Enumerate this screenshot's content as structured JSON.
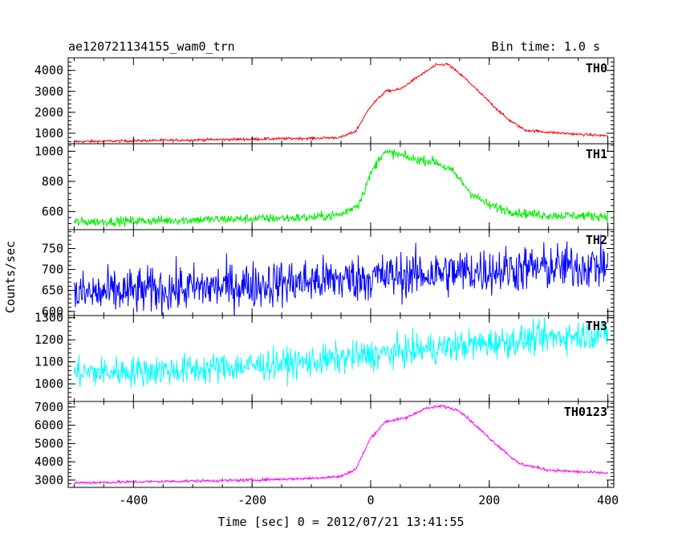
{
  "header": {
    "title": "ae120721134155_wam0_trn",
    "bin_time": "Bin time: 1.0 s"
  },
  "axes": {
    "xlabel": "Time [sec] 0 = 2012/07/21 13:41:55",
    "ylabel": "Counts/sec",
    "xlim": [
      -510,
      410
    ],
    "xticks": [
      -400,
      -200,
      0,
      200,
      400
    ]
  },
  "chart_data": [
    {
      "type": "line",
      "name": "TH0",
      "color": "#ff0000",
      "ylim": [
        500,
        4600
      ],
      "yticks": [
        1000,
        2000,
        3000,
        4000
      ],
      "noise": 45,
      "x": [
        -500,
        -400,
        -300,
        -200,
        -100,
        -50,
        -25,
        0,
        25,
        50,
        80,
        110,
        130,
        160,
        200,
        230,
        260,
        300,
        350,
        400
      ],
      "y": [
        600,
        640,
        680,
        720,
        760,
        800,
        1100,
        2300,
        3000,
        3100,
        3700,
        4250,
        4300,
        3600,
        2500,
        1700,
        1150,
        1050,
        950,
        880
      ]
    },
    {
      "type": "line",
      "name": "TH1",
      "color": "#00ee00",
      "ylim": [
        480,
        1050
      ],
      "yticks": [
        600,
        800,
        1000
      ],
      "noise": 22,
      "x": [
        -500,
        -300,
        -100,
        -50,
        -20,
        0,
        20,
        40,
        70,
        110,
        140,
        170,
        200,
        250,
        300,
        400
      ],
      "y": [
        530,
        545,
        560,
        580,
        650,
        850,
        990,
        985,
        950,
        930,
        860,
        720,
        640,
        590,
        575,
        570
      ]
    },
    {
      "type": "line",
      "name": "TH2",
      "color": "#0000ff",
      "ylim": [
        590,
        795
      ],
      "yticks": [
        600,
        650,
        700,
        750
      ],
      "noise": 40,
      "x": [
        -500,
        -300,
        -100,
        100,
        300,
        400
      ],
      "y": [
        640,
        655,
        672,
        690,
        705,
        710
      ]
    },
    {
      "type": "line",
      "name": "TH3",
      "color": "#00ffff",
      "ylim": [
        920,
        1310
      ],
      "yticks": [
        1000,
        1100,
        1200,
        1300
      ],
      "noise": 50,
      "x": [
        -500,
        -300,
        -100,
        100,
        300,
        400
      ],
      "y": [
        1050,
        1065,
        1100,
        1160,
        1210,
        1230
      ]
    },
    {
      "type": "line",
      "name": "TH0123",
      "color": "#ff00ff",
      "ylim": [
        2600,
        7300
      ],
      "yticks": [
        3000,
        4000,
        5000,
        6000,
        7000
      ],
      "noise": 55,
      "x": [
        -500,
        -400,
        -300,
        -200,
        -100,
        -50,
        -25,
        0,
        25,
        60,
        90,
        120,
        150,
        200,
        250,
        300,
        350,
        400
      ],
      "y": [
        2850,
        2900,
        2950,
        3000,
        3100,
        3200,
        3600,
        5300,
        6200,
        6400,
        6900,
        7050,
        6800,
        5300,
        3900,
        3550,
        3450,
        3380
      ]
    }
  ]
}
